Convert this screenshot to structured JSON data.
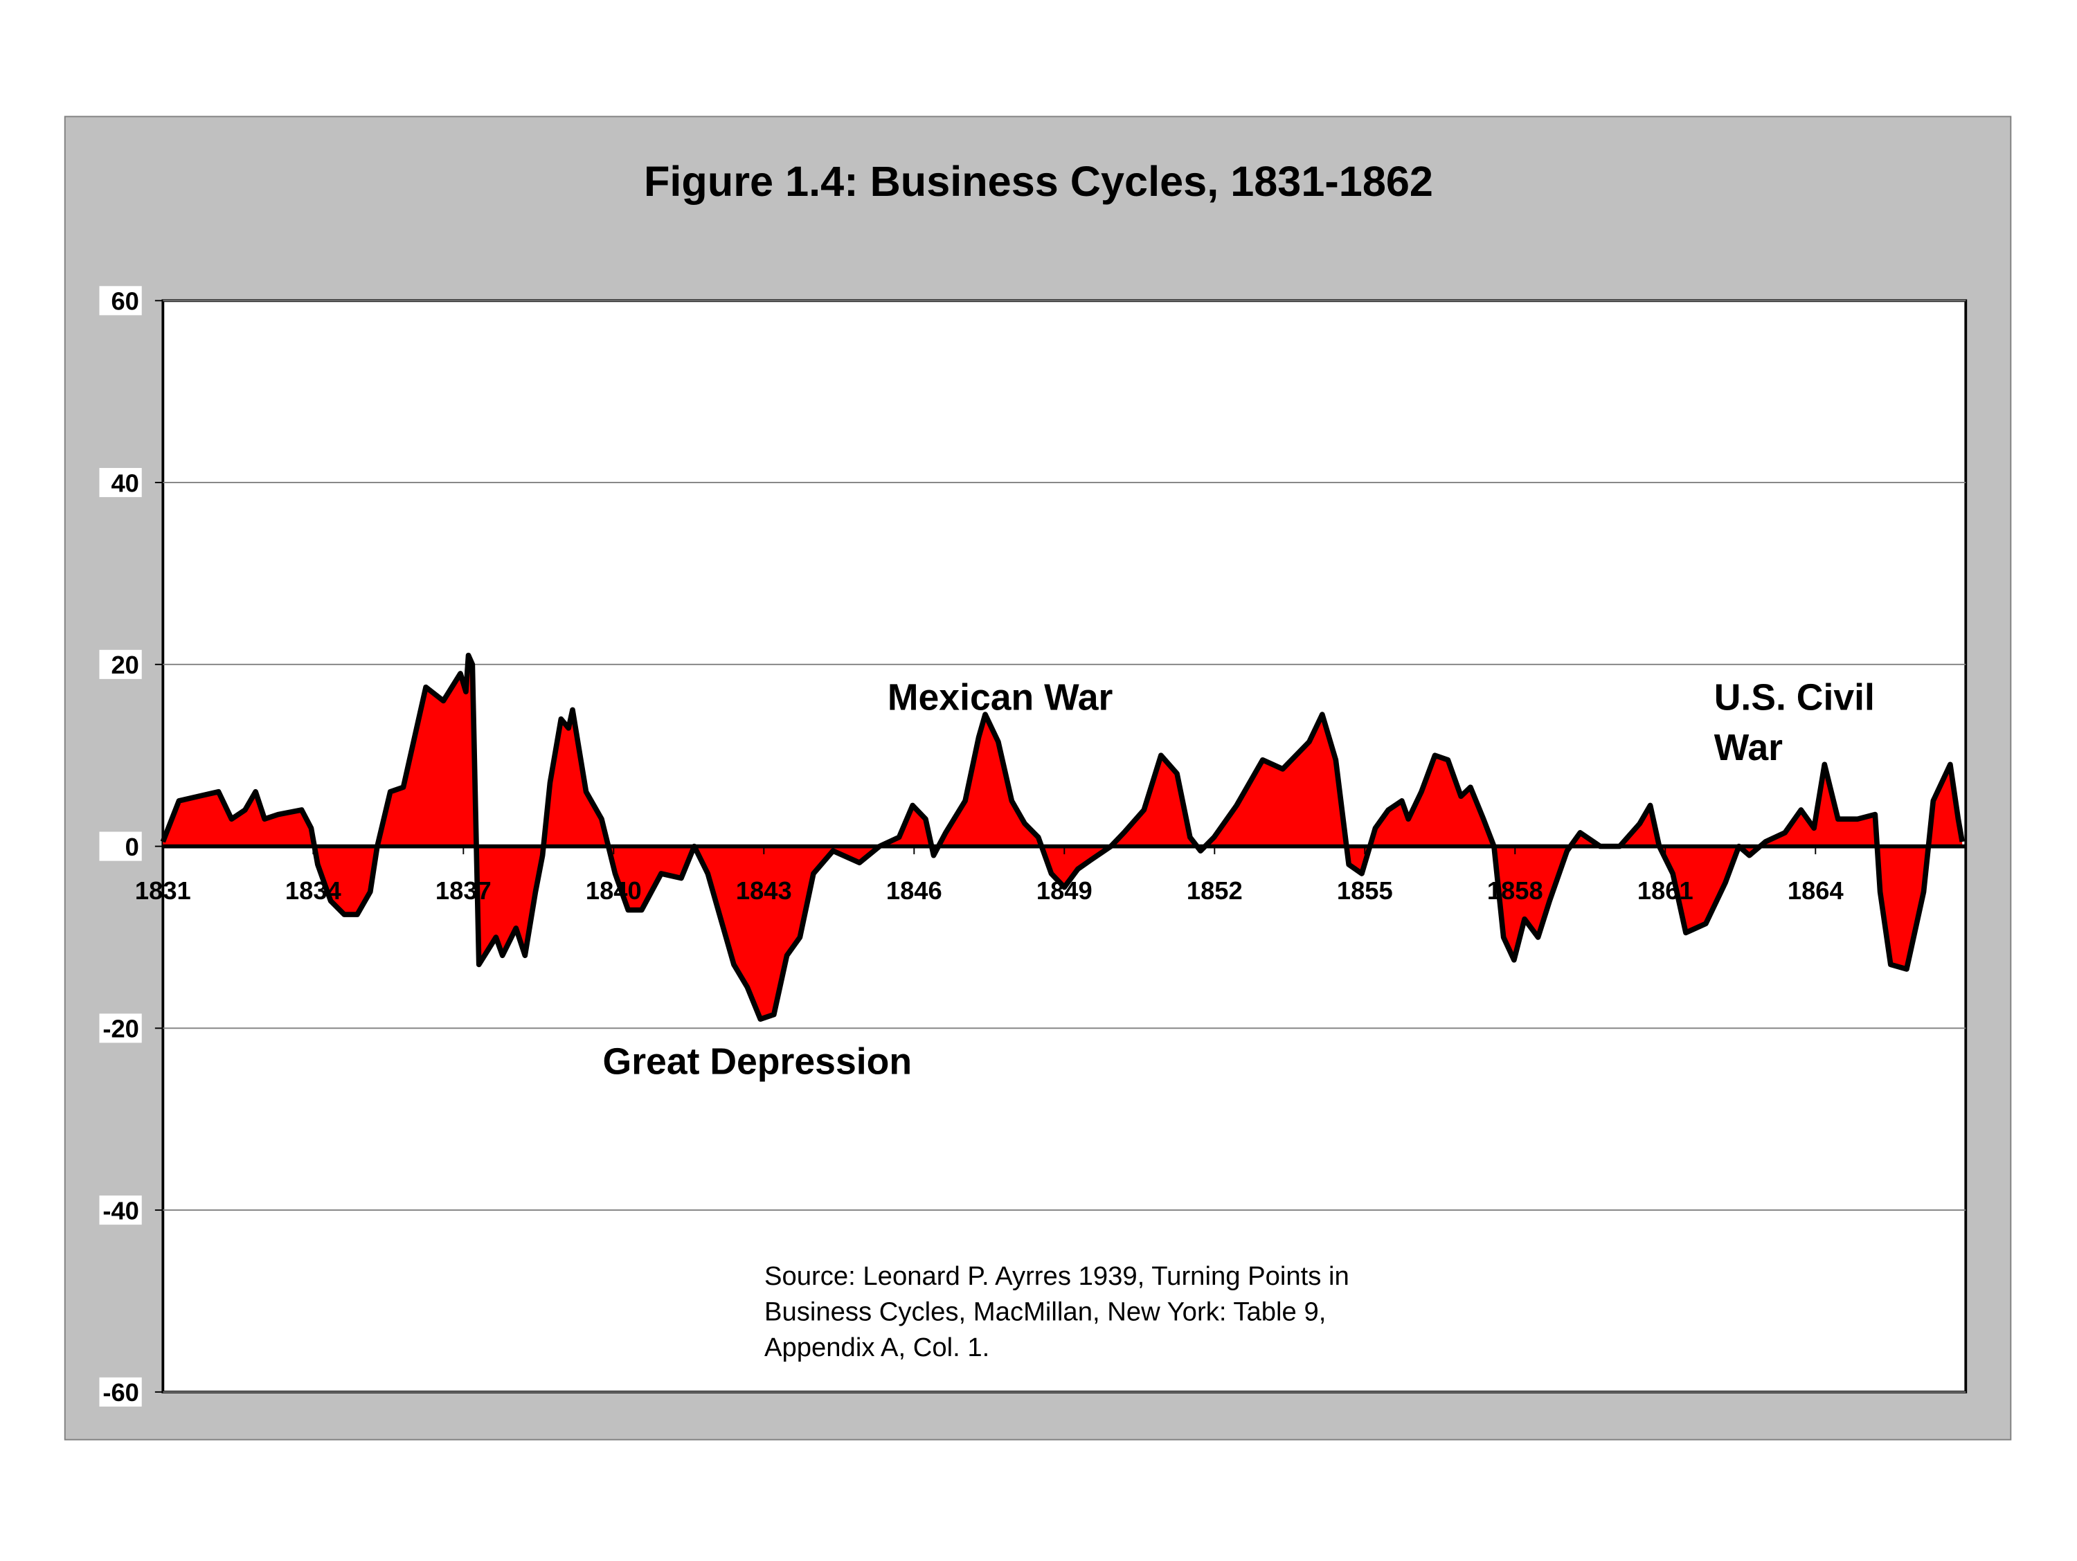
{
  "chart_data": {
    "type": "area",
    "title": "Figure 1.4: Business Cycles, 1831-1862",
    "x": [
      1831.0,
      1831.32,
      1831.71,
      1832.11,
      1832.37,
      1832.64,
      1832.85,
      1833.03,
      1833.3,
      1833.77,
      1833.96,
      1834.09,
      1834.35,
      1834.62,
      1834.88,
      1835.14,
      1835.28,
      1835.54,
      1835.8,
      1836.25,
      1836.6,
      1836.94,
      1837.05,
      1837.1,
      1837.18,
      1837.31,
      1837.65,
      1837.78,
      1838.05,
      1838.23,
      1838.44,
      1838.58,
      1838.73,
      1838.95,
      1839.1,
      1839.18,
      1839.45,
      1839.76,
      1840.03,
      1840.29,
      1840.56,
      1840.95,
      1841.35,
      1841.61,
      1841.88,
      1842.14,
      1842.4,
      1842.67,
      1842.93,
      1843.2,
      1843.46,
      1843.72,
      1843.99,
      1844.38,
      1844.91,
      1845.31,
      1845.7,
      1845.97,
      1846.23,
      1846.39,
      1846.63,
      1847.02,
      1847.29,
      1847.42,
      1847.68,
      1847.95,
      1848.21,
      1848.48,
      1848.74,
      1849.0,
      1849.27,
      1849.53,
      1849.93,
      1850.19,
      1850.59,
      1850.93,
      1851.25,
      1851.51,
      1851.72,
      1851.99,
      1852.44,
      1852.96,
      1853.36,
      1853.89,
      1854.15,
      1854.42,
      1854.68,
      1854.94,
      1855.21,
      1855.47,
      1855.74,
      1855.87,
      1856.13,
      1856.4,
      1856.66,
      1856.92,
      1857.11,
      1857.37,
      1857.58,
      1857.77,
      1857.98,
      1858.19,
      1858.46,
      1858.69,
      1859.04,
      1859.3,
      1859.7,
      1860.09,
      1860.49,
      1860.7,
      1860.88,
      1861.15,
      1861.41,
      1861.81,
      1862.2,
      1862.47,
      1862.68,
      1863.0,
      1863.39,
      1863.71,
      1863.97,
      1864.18,
      1864.45,
      1864.84,
      1865.19,
      1865.29,
      1865.5,
      1865.82,
      1866.16,
      1866.35,
      1866.69,
      1866.85,
      1866.93
    ],
    "series": [
      {
        "color": "#ff0000",
        "values": [
          0.5,
          5,
          5.5,
          6,
          3,
          4,
          6,
          3,
          3.5,
          4,
          2,
          -2,
          -6,
          -7.5,
          -7.5,
          -5,
          0,
          6,
          6.5,
          17.5,
          16,
          19,
          17,
          21,
          20,
          -13,
          -10,
          -12,
          -9,
          -12,
          -5,
          -1,
          7,
          14,
          13,
          15,
          6,
          3,
          -3,
          -7,
          -7,
          -3,
          -3.5,
          0,
          -3,
          -8,
          -13,
          -15.5,
          -19,
          -18.5,
          -12,
          -10,
          -3,
          -0.5,
          -1.8,
          0,
          1,
          4.5,
          3,
          -1,
          1.5,
          5,
          12,
          14.5,
          11.5,
          5,
          2.5,
          1,
          -3,
          -4.5,
          -2.5,
          -1.5,
          0,
          1.5,
          4,
          10,
          8,
          1,
          -0.5,
          1,
          4.5,
          9.5,
          8.5,
          11.5,
          14.5,
          9.5,
          -2,
          -3,
          2,
          4,
          5,
          3,
          6,
          10,
          9.5,
          5.5,
          6.5,
          3,
          0,
          -10,
          -12.5,
          -8,
          -10,
          -6,
          -0.5,
          1.5,
          0,
          0,
          2.5,
          4.5,
          0,
          -3,
          -9.5,
          -8.5,
          -4,
          0,
          -1,
          0.5,
          1.5,
          4,
          2,
          9,
          3,
          3,
          3.5,
          -5,
          -13,
          -13.5,
          -5,
          5,
          9,
          3,
          0.5
        ]
      }
    ],
    "xlim": [
      1831,
      1867
    ],
    "xticks": [
      1831,
      1834,
      1837,
      1840,
      1843,
      1846,
      1849,
      1852,
      1855,
      1858,
      1861,
      1864
    ],
    "ylim": [
      -60,
      60
    ],
    "yticks": [
      60,
      40,
      20,
      0,
      -20,
      -40,
      -60
    ],
    "grid": true,
    "annotations": [
      {
        "text": [
          "Mexican War"
        ]
      },
      {
        "text": [
          "U.S. Civil",
          "War"
        ]
      },
      {
        "text": [
          "Great Depression"
        ]
      },
      {
        "text": [
          "Source:  Leonard P. Ayrres 1939, Turning Points in",
          "Business Cycles, MacMillan, New York: Table 9,",
          "Appendix A, Col. 1."
        ]
      }
    ]
  }
}
